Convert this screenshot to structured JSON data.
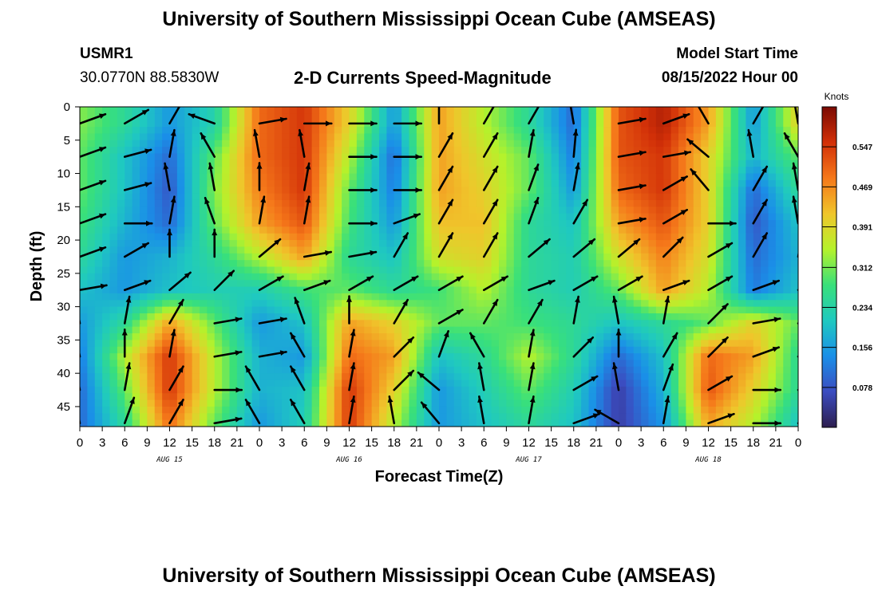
{
  "header": {
    "title": "University of Southern Mississippi Ocean Cube (AMSEAS)",
    "station_id": "USMR1",
    "station_coords": "30.0770N  88.5830W",
    "subtitle": "2-D Currents Speed-Magnitude",
    "model_start_label": "Model Start Time",
    "model_start_value": "08/15/2022 Hour 00"
  },
  "footer": {
    "title": "University of Southern Mississippi Ocean Cube (AMSEAS)"
  },
  "colors": {
    "scale": [
      "#2d1e4e",
      "#3b4cc0",
      "#1a8fe8",
      "#1fc9c0",
      "#39e07a",
      "#b5f22b",
      "#f0c52b",
      "#f5781a",
      "#d23008",
      "#7a0a03"
    ],
    "arrow": "#000000"
  },
  "chart_data": {
    "type": "heatmap",
    "xlabel": "Forecast Time(Z)",
    "ylabel": "Depth (ft)",
    "x_unit": "hours since model start",
    "xlim": [
      0,
      96
    ],
    "ylim": [
      0,
      48
    ],
    "x_tick_values": [
      0,
      3,
      6,
      9,
      12,
      15,
      18,
      21,
      24,
      27,
      30,
      33,
      36,
      39,
      42,
      45,
      48,
      51,
      54,
      57,
      60,
      63,
      66,
      69,
      72,
      75,
      78,
      81,
      84,
      87,
      90,
      93,
      96
    ],
    "x_tick_labels": [
      "0",
      "3",
      "6",
      "9",
      "12",
      "15",
      "18",
      "21",
      "0",
      "3",
      "6",
      "9",
      "12",
      "15",
      "18",
      "21",
      "0",
      "3",
      "6",
      "9",
      "12",
      "15",
      "18",
      "21",
      "0",
      "3",
      "6",
      "9",
      "12",
      "15",
      "18",
      "21",
      "0"
    ],
    "day_labels": [
      {
        "hour": 12,
        "text": "AUG 15"
      },
      {
        "hour": 36,
        "text": "AUG 16"
      },
      {
        "hour": 60,
        "text": "AUG 17"
      },
      {
        "hour": 84,
        "text": "AUG 18"
      }
    ],
    "y_ticks": [
      0,
      5,
      10,
      15,
      20,
      25,
      30,
      35,
      40,
      45
    ],
    "colorbar": {
      "unit": "Knots",
      "range": [
        0.0,
        0.625
      ],
      "ticks": [
        0.078,
        0.156,
        0.234,
        0.312,
        0.391,
        0.469,
        0.547
      ]
    },
    "depths_ft": [
      2.5,
      7.5,
      12.5,
      17.5,
      22.5,
      27.5,
      32.5,
      37.5,
      42.5,
      47.5
    ],
    "time_bins_h": [
      0,
      6,
      12,
      18,
      24,
      30,
      36,
      42,
      48,
      54,
      60,
      66,
      72,
      78,
      84,
      90,
      96
    ],
    "speed_knots": [
      [
        0.32,
        0.25,
        0.15,
        0.23,
        0.5,
        0.55,
        0.4,
        0.15,
        0.45,
        0.35,
        0.25,
        0.1,
        0.52,
        0.58,
        0.45,
        0.15,
        0.4
      ],
      [
        0.3,
        0.2,
        0.1,
        0.3,
        0.5,
        0.55,
        0.35,
        0.1,
        0.45,
        0.38,
        0.3,
        0.12,
        0.52,
        0.55,
        0.4,
        0.18,
        0.3
      ],
      [
        0.3,
        0.2,
        0.08,
        0.32,
        0.48,
        0.55,
        0.3,
        0.12,
        0.45,
        0.4,
        0.3,
        0.15,
        0.5,
        0.55,
        0.4,
        0.1,
        0.25
      ],
      [
        0.28,
        0.18,
        0.1,
        0.3,
        0.45,
        0.52,
        0.28,
        0.15,
        0.42,
        0.42,
        0.25,
        0.2,
        0.45,
        0.52,
        0.4,
        0.08,
        0.2
      ],
      [
        0.25,
        0.15,
        0.18,
        0.25,
        0.35,
        0.45,
        0.25,
        0.2,
        0.38,
        0.4,
        0.25,
        0.22,
        0.38,
        0.48,
        0.38,
        0.1,
        0.18
      ],
      [
        0.2,
        0.15,
        0.2,
        0.22,
        0.22,
        0.28,
        0.3,
        0.25,
        0.28,
        0.35,
        0.25,
        0.22,
        0.3,
        0.45,
        0.35,
        0.12,
        0.2
      ],
      [
        0.15,
        0.25,
        0.45,
        0.3,
        0.15,
        0.2,
        0.45,
        0.4,
        0.3,
        0.3,
        0.28,
        0.25,
        0.2,
        0.25,
        0.3,
        0.4,
        0.3
      ],
      [
        0.12,
        0.35,
        0.55,
        0.35,
        0.18,
        0.15,
        0.5,
        0.45,
        0.2,
        0.25,
        0.35,
        0.25,
        0.1,
        0.2,
        0.5,
        0.45,
        0.25
      ],
      [
        0.1,
        0.3,
        0.55,
        0.35,
        0.18,
        0.2,
        0.55,
        0.4,
        0.15,
        0.22,
        0.3,
        0.22,
        0.05,
        0.18,
        0.52,
        0.4,
        0.25
      ],
      [
        0.1,
        0.25,
        0.5,
        0.3,
        0.15,
        0.22,
        0.55,
        0.35,
        0.15,
        0.2,
        0.25,
        0.2,
        0.05,
        0.15,
        0.45,
        0.35,
        0.2
      ]
    ],
    "direction_deg_ccw_from_east": [
      [
        20,
        30,
        60,
        160,
        10,
        0,
        0,
        0,
        90,
        60,
        60,
        100,
        10,
        20,
        120,
        60,
        100
      ],
      [
        20,
        15,
        80,
        120,
        100,
        100,
        0,
        0,
        60,
        60,
        80,
        85,
        10,
        10,
        140,
        100,
        120
      ],
      [
        20,
        15,
        100,
        100,
        90,
        80,
        0,
        0,
        60,
        60,
        70,
        80,
        10,
        30,
        130,
        60,
        100
      ],
      [
        20,
        0,
        80,
        110,
        80,
        80,
        0,
        20,
        60,
        60,
        70,
        60,
        10,
        30,
        0,
        60,
        100
      ],
      [
        20,
        30,
        90,
        90,
        40,
        10,
        10,
        60,
        60,
        60,
        40,
        40,
        40,
        45,
        30,
        60,
        80
      ],
      [
        10,
        20,
        40,
        45,
        30,
        20,
        30,
        30,
        30,
        30,
        20,
        30,
        30,
        20,
        30,
        20,
        20
      ],
      [
        100,
        80,
        60,
        10,
        10,
        110,
        90,
        60,
        30,
        60,
        60,
        80,
        100,
        80,
        45,
        10,
        10
      ],
      [
        100,
        90,
        80,
        10,
        10,
        120,
        80,
        45,
        70,
        120,
        80,
        45,
        90,
        60,
        45,
        20,
        20
      ],
      [
        100,
        80,
        60,
        0,
        120,
        120,
        80,
        45,
        140,
        100,
        80,
        30,
        100,
        70,
        30,
        0,
        10
      ],
      [
        100,
        70,
        60,
        10,
        120,
        120,
        80,
        100,
        130,
        100,
        80,
        20,
        150,
        80,
        20,
        0,
        10
      ]
    ]
  }
}
